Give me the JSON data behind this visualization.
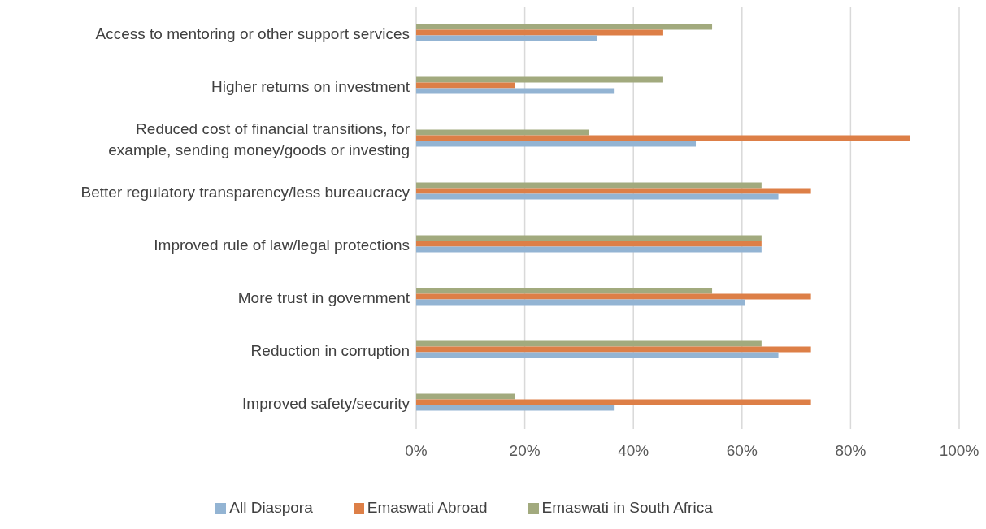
{
  "chart_data": {
    "type": "bar",
    "orientation": "horizontal",
    "categories": [
      "Access to mentoring or other support services",
      "Higher returns on investment",
      "Reduced cost of financial transitions, for example, sending money/goods or investing",
      "Better regulatory transparency/less bureaucracy",
      "Improved rule of law/legal protections",
      "More trust in government",
      "Reduction in corruption",
      "Improved safety/security"
    ],
    "series": [
      {
        "name": "Emaswati in South Africa",
        "color": "#a2aa7e",
        "values": [
          54.5,
          45.5,
          31.8,
          63.6,
          63.6,
          54.5,
          63.6,
          18.2
        ]
      },
      {
        "name": "Emaswati Abroad",
        "color": "#dd7f47",
        "values": [
          45.5,
          18.2,
          90.9,
          72.7,
          63.6,
          72.7,
          72.7,
          72.7
        ]
      },
      {
        "name": "All Diaspora",
        "color": "#93b4d3",
        "values": [
          33.3,
          36.4,
          51.5,
          66.7,
          63.6,
          60.6,
          66.7,
          36.4
        ]
      }
    ],
    "xlim": [
      0,
      100
    ],
    "xticks": [
      {
        "value": 0,
        "label": "0%"
      },
      {
        "value": 20,
        "label": "20%"
      },
      {
        "value": 40,
        "label": "40%"
      },
      {
        "value": 60,
        "label": "60%"
      },
      {
        "value": 80,
        "label": "80%"
      },
      {
        "value": 100,
        "label": "100%"
      }
    ],
    "grid": "x",
    "legend": "bottom"
  }
}
